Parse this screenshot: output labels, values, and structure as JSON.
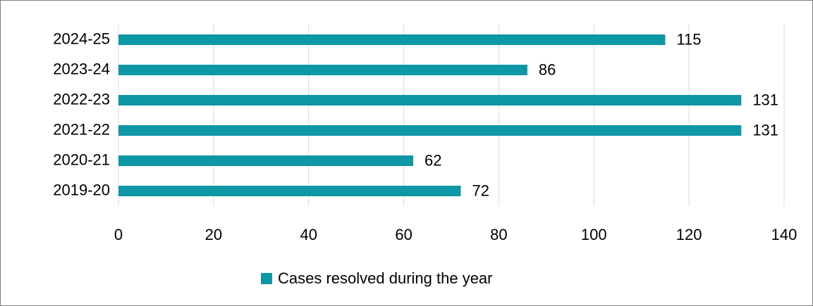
{
  "chart_data": {
    "type": "bar",
    "orientation": "horizontal",
    "categories": [
      "2024-25",
      "2023-24",
      "2022-23",
      "2021-22",
      "2020-21",
      "2019-20"
    ],
    "series": [
      {
        "name": "Cases resolved during the year",
        "color": "#0e97a4",
        "values": [
          115,
          86,
          131,
          131,
          62,
          72
        ]
      }
    ],
    "xlim": [
      0,
      140
    ],
    "xticks": [
      0,
      20,
      40,
      60,
      80,
      100,
      120,
      140
    ],
    "grid": true,
    "legend": "bottom"
  }
}
